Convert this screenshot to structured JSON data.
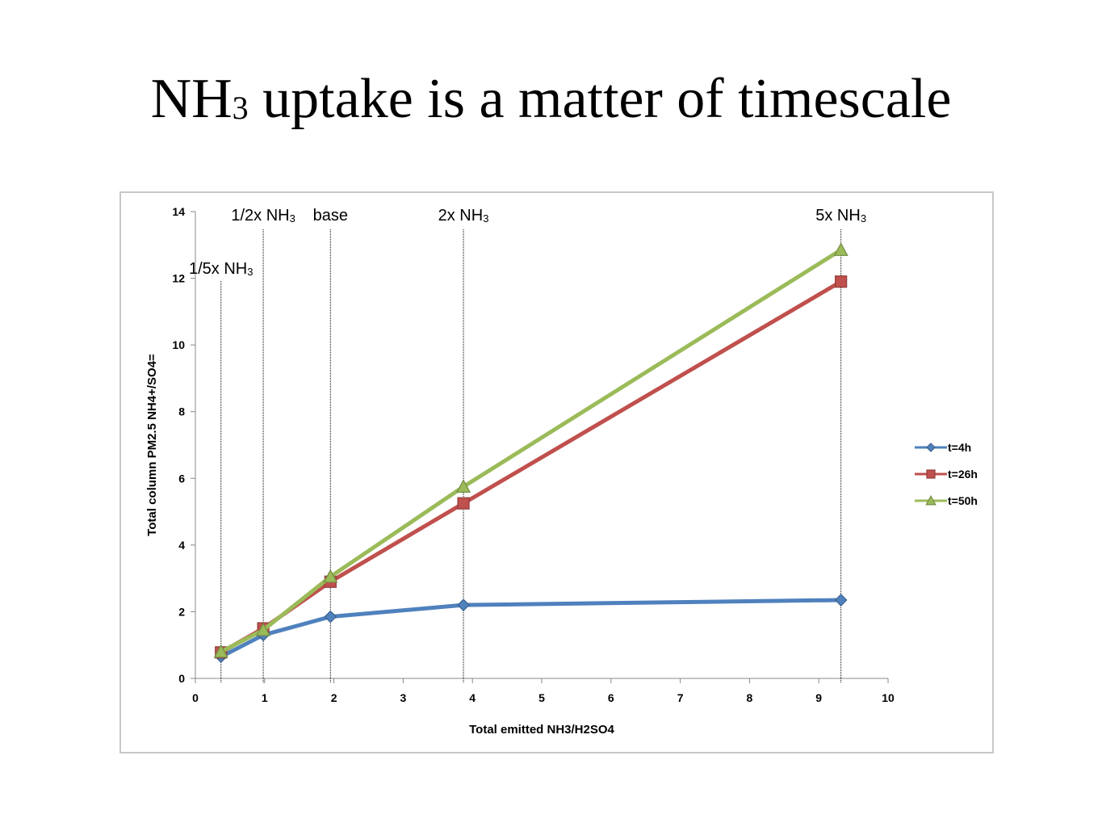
{
  "title": {
    "main": "NH",
    "sub": "3",
    "rest": " uptake is a matter of timescale"
  },
  "chart_data": {
    "type": "line",
    "xlabel": "Total emitted  NH3/H2SO4",
    "ylabel": "Total column PM2.5 NH4+/SO4=",
    "xlim": [
      0,
      10
    ],
    "ylim": [
      0,
      14
    ],
    "xticks": [
      0,
      1,
      2,
      3,
      4,
      5,
      6,
      7,
      8,
      9,
      10
    ],
    "yticks": [
      0,
      2,
      4,
      6,
      8,
      10,
      12,
      14
    ],
    "grid": false,
    "legend_position": "right",
    "series": [
      {
        "name": "t=4h",
        "color": "#4f81bd",
        "marker": "diamond",
        "x": [
          0.37,
          0.98,
          1.95,
          3.87,
          9.32
        ],
        "y": [
          0.65,
          1.3,
          1.85,
          2.2,
          2.35
        ]
      },
      {
        "name": "t=26h",
        "color": "#c0504d",
        "marker": "square",
        "x": [
          0.37,
          0.98,
          1.95,
          3.87,
          9.32
        ],
        "y": [
          0.78,
          1.5,
          2.9,
          5.25,
          11.9
        ]
      },
      {
        "name": "t=50h",
        "color": "#9bbb59",
        "marker": "triangle",
        "x": [
          0.37,
          0.98,
          1.95,
          3.87,
          9.32
        ],
        "y": [
          0.8,
          1.45,
          3.05,
          5.75,
          12.85
        ]
      }
    ],
    "annotations": [
      {
        "label": "1/5x NH",
        "sub": "3",
        "x": 0.37,
        "row": "lower"
      },
      {
        "label": "1/2x NH",
        "sub": "3",
        "x": 0.98,
        "row": "upper"
      },
      {
        "label": "base",
        "sub": "",
        "x": 1.95,
        "row": "upper"
      },
      {
        "label": "2x NH",
        "sub": "3",
        "x": 3.87,
        "row": "upper"
      },
      {
        "label": "5x NH",
        "sub": "3",
        "x": 9.32,
        "row": "upper"
      }
    ]
  }
}
